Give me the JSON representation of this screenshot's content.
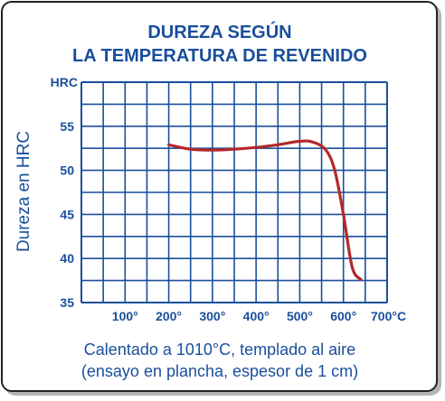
{
  "title_lines": [
    "DUREZA SEGÚN",
    "LA TEMPERATURA DE REVENIDO"
  ],
  "caption_lines": [
    "Calentado a 1010°C, templado al aire",
    "(ensayo en plancha, espesor de 1 cm)"
  ],
  "colors": {
    "text": "#1a4f9c",
    "grid": "#1a4f9c",
    "curve": "#b32828",
    "border": "#222222"
  },
  "chart_data": {
    "type": "line",
    "title": "DUREZA SEGÚN LA TEMPERATURA DE REVENIDO",
    "xlabel": "",
    "ylabel": "Dureza en HRC",
    "y_unit_label": "HRC",
    "xlim": [
      0,
      700
    ],
    "ylim": [
      35,
      60
    ],
    "x_ticks": [
      100,
      200,
      300,
      400,
      500,
      600,
      700
    ],
    "x_tick_labels": [
      "100°",
      "200°",
      "300°",
      "400°",
      "500°",
      "600°",
      "700°C"
    ],
    "y_ticks": [
      35,
      40,
      45,
      50,
      55
    ],
    "y_tick_labels": [
      "35",
      "40",
      "45",
      "50",
      "55"
    ],
    "grid": true,
    "series": [
      {
        "name": "",
        "x": [
          200,
          250,
          300,
          350,
          400,
          450,
          500,
          530,
          560,
          580,
          600,
          620,
          640
        ],
        "y": [
          52.9,
          52.4,
          52.3,
          52.4,
          52.6,
          52.9,
          53.3,
          53.2,
          52.3,
          50.0,
          45.0,
          39.0,
          37.6
        ]
      }
    ]
  }
}
